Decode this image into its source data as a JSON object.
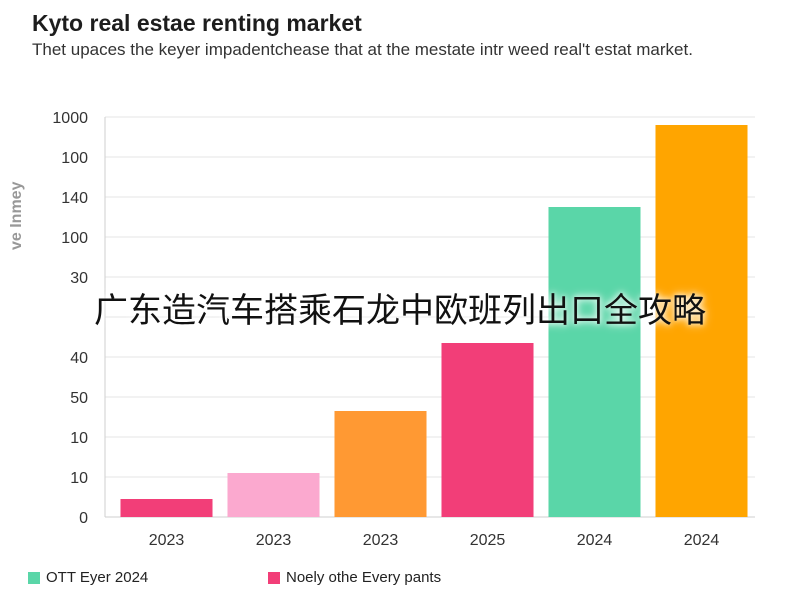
{
  "title": "Kyto real estae renting market",
  "subtitle": "Thet upaces the keyer impadentсhease that at the mestate intr weed real't estat market.",
  "ylabel": "ve Inmey",
  "overlay_text": "广东造汽车搭乘石龙中欧班列出口全攻略",
  "legend": [
    {
      "label": "OTT Eyer 2024",
      "color": "#5ad6a8"
    },
    {
      "label": "Noely othe Every pants",
      "color": "#f23e78"
    }
  ],
  "chart_data": {
    "type": "bar",
    "title": "Kyto real estae renting market",
    "ylabel": "ve Inmey",
    "yticks": [
      "0",
      "10",
      "10",
      "50",
      "40",
      "",
      "30",
      "100",
      "140",
      "100",
      "1000"
    ],
    "ytick_positions": [
      0,
      1,
      2,
      3,
      4,
      5,
      6,
      7,
      8,
      9,
      10
    ],
    "categories": [
      "2023",
      "2023",
      "2023",
      "2025",
      "2024",
      "2024"
    ],
    "values": [
      0.45,
      1.1,
      2.65,
      4.35,
      7.75,
      9.8
    ],
    "bar_colors": [
      "#f23e78",
      "#fba9cf",
      "#ff9933",
      "#f23e78",
      "#5ad6a8",
      "#ffa500"
    ],
    "grid": true,
    "legend_position": "bottom-left"
  }
}
